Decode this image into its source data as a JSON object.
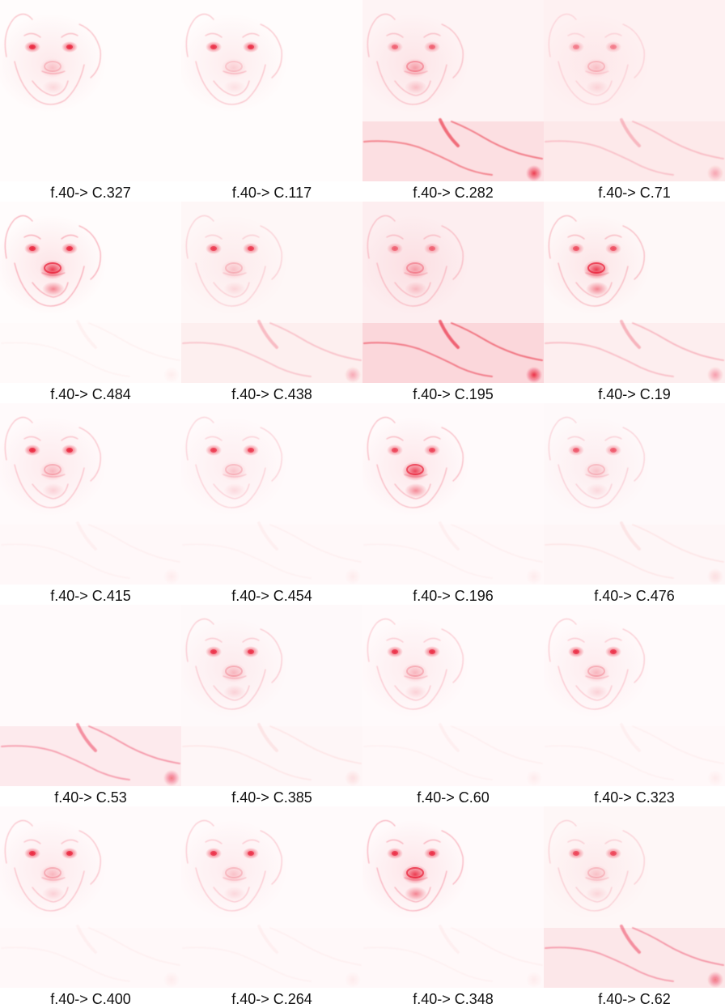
{
  "cells": [
    {
      "label": "f.40-> C.327",
      "face": 0.45,
      "eyes": 0.75,
      "nose": 0.2,
      "body": 0.0,
      "bg": 0.02
    },
    {
      "label": "f.40-> C.117",
      "face": 0.4,
      "eyes": 0.7,
      "nose": 0.15,
      "body": 0.0,
      "bg": 0.02
    },
    {
      "label": "f.40-> C.282",
      "face": 0.4,
      "eyes": 0.45,
      "nose": 0.35,
      "body": 0.8,
      "bg": 0.08
    },
    {
      "label": "f.40-> C.71",
      "face": 0.25,
      "eyes": 0.35,
      "nose": 0.2,
      "body": 0.3,
      "bg": 0.1
    },
    {
      "label": "f.40-> C.484",
      "face": 0.55,
      "eyes": 0.75,
      "nose": 0.8,
      "body": 0.05,
      "bg": 0.02
    },
    {
      "label": "f.40-> C.438",
      "face": 0.3,
      "eyes": 0.65,
      "nose": 0.2,
      "body": 0.3,
      "bg": 0.06
    },
    {
      "label": "f.40-> C.195",
      "face": 0.4,
      "eyes": 0.45,
      "nose": 0.35,
      "body": 0.85,
      "bg": 0.12
    },
    {
      "label": "f.40-> C.19",
      "face": 0.45,
      "eyes": 0.55,
      "nose": 0.8,
      "body": 0.35,
      "bg": 0.05
    },
    {
      "label": "f.40-> C.415",
      "face": 0.4,
      "eyes": 0.75,
      "nose": 0.25,
      "body": 0.05,
      "bg": 0.03
    },
    {
      "label": "f.40-> C.454",
      "face": 0.3,
      "eyes": 0.65,
      "nose": 0.2,
      "body": 0.05,
      "bg": 0.03
    },
    {
      "label": "f.40-> C.196",
      "face": 0.45,
      "eyes": 0.6,
      "nose": 0.75,
      "body": 0.05,
      "bg": 0.03
    },
    {
      "label": "f.40-> C.476",
      "face": 0.3,
      "eyes": 0.5,
      "nose": 0.2,
      "body": 0.1,
      "bg": 0.04
    },
    {
      "label": "f.40-> C.53",
      "face": 0.0,
      "eyes": 0.0,
      "nose": 0.0,
      "body": 0.55,
      "bg": 0.03
    },
    {
      "label": "f.40-> C.385",
      "face": 0.35,
      "eyes": 0.7,
      "nose": 0.25,
      "body": 0.1,
      "bg": 0.04
    },
    {
      "label": "f.40-> C.60",
      "face": 0.35,
      "eyes": 0.7,
      "nose": 0.25,
      "body": 0.05,
      "bg": 0.03
    },
    {
      "label": "f.40-> C.323",
      "face": 0.35,
      "eyes": 0.7,
      "nose": 0.25,
      "body": 0.05,
      "bg": 0.03
    },
    {
      "label": "f.40-> C.400",
      "face": 0.4,
      "eyes": 0.75,
      "nose": 0.25,
      "body": 0.05,
      "bg": 0.03
    },
    {
      "label": "f.40-> C.264",
      "face": 0.35,
      "eyes": 0.7,
      "nose": 0.2,
      "body": 0.05,
      "bg": 0.03
    },
    {
      "label": "f.40-> C.348",
      "face": 0.5,
      "eyes": 0.7,
      "nose": 0.8,
      "body": 0.05,
      "bg": 0.03
    },
    {
      "label": "f.40-> C.62",
      "face": 0.3,
      "eyes": 0.6,
      "nose": 0.2,
      "body": 0.55,
      "bg": 0.06
    }
  ],
  "colors": {
    "heat": "#e8102a",
    "background": "#ffffff",
    "text": "#111111"
  }
}
